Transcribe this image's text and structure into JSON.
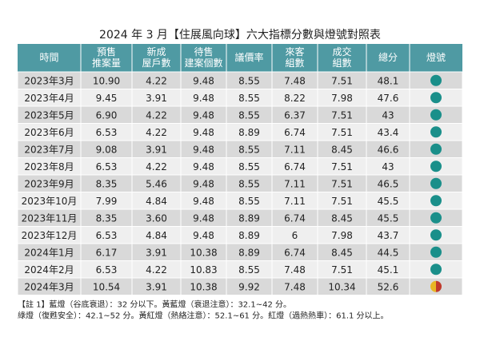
{
  "title": "2024 年 3 月【住展風向球】六大指標分數與燈號對照表",
  "table": {
    "header": [
      [
        "時間"
      ],
      [
        "預售",
        "推案量"
      ],
      [
        "新成",
        "屋戶數"
      ],
      [
        "待售",
        "建案個數"
      ],
      [
        "議價率"
      ],
      [
        "來客",
        "組數"
      ],
      [
        "成交",
        "組數"
      ],
      [
        "總分"
      ],
      [
        "燈號"
      ]
    ],
    "rows": [
      [
        "2023年3月",
        "10.90",
        "4.22",
        "9.48",
        "8.55",
        "7.48",
        "7.51",
        "48.1"
      ],
      [
        "2023年4月",
        "9.45",
        "3.91",
        "9.48",
        "8.55",
        "8.22",
        "7.98",
        "47.6"
      ],
      [
        "2023年5月",
        "6.90",
        "4.22",
        "9.48",
        "8.55",
        "6.37",
        "7.51",
        "43"
      ],
      [
        "2023年6月",
        "6.53",
        "4.22",
        "9.48",
        "8.89",
        "6.74",
        "7.51",
        "43.4"
      ],
      [
        "2023年7月",
        "9.08",
        "3.91",
        "9.48",
        "8.55",
        "7.11",
        "8.45",
        "46.6"
      ],
      [
        "2023年8月",
        "6.53",
        "4.22",
        "9.48",
        "8.55",
        "6.74",
        "7.51",
        "43"
      ],
      [
        "2023年9月",
        "8.35",
        "5.46",
        "9.48",
        "8.55",
        "7.11",
        "7.51",
        "46.5"
      ],
      [
        "2023年10月",
        "7.99",
        "4.84",
        "9.48",
        "8.55",
        "7.11",
        "7.51",
        "45.5"
      ],
      [
        "2023年11月",
        "8.35",
        "3.60",
        "9.48",
        "8.89",
        "6.74",
        "8.45",
        "45.5"
      ],
      [
        "2023年12月",
        "6.53",
        "4.84",
        "9.48",
        "8.89",
        "6",
        "7.98",
        "43.7"
      ],
      [
        "2024年1月",
        "6.17",
        "3.91",
        "10.38",
        "8.89",
        "6.74",
        "8.45",
        "44.5"
      ],
      [
        "2024年2月",
        "6.53",
        "4.22",
        "10.83",
        "8.55",
        "7.48",
        "7.51",
        "45.1"
      ],
      [
        "2024年3月",
        "10.54",
        "3.91",
        "10.38",
        "9.92",
        "7.48",
        "10.34",
        "52.6"
      ]
    ],
    "lights": [
      [
        "#1a8f8a"
      ],
      [
        "#1a8f8a"
      ],
      [
        "#1a8f8a"
      ],
      [
        "#1a8f8a"
      ],
      [
        "#1a8f8a"
      ],
      [
        "#1a8f8a"
      ],
      [
        "#1a8f8a"
      ],
      [
        "#1a8f8a"
      ],
      [
        "#1a8f8a"
      ],
      [
        "#1a8f8a"
      ],
      [
        "#1a8f8a"
      ],
      [
        "#1a8f8a"
      ],
      [
        "#e8b624",
        "#c0392b"
      ]
    ]
  },
  "notes": [
    "【註 1】藍燈（谷底衰退）：32 分以下。黃藍燈（衰退注意）：32.1~42 分。",
    "綠燈（復甦安全）：42.1~52 分。黃紅燈（熱絡注意）：52.1~61 分。紅燈（過熱熱車）：61.1 分以上。"
  ]
}
